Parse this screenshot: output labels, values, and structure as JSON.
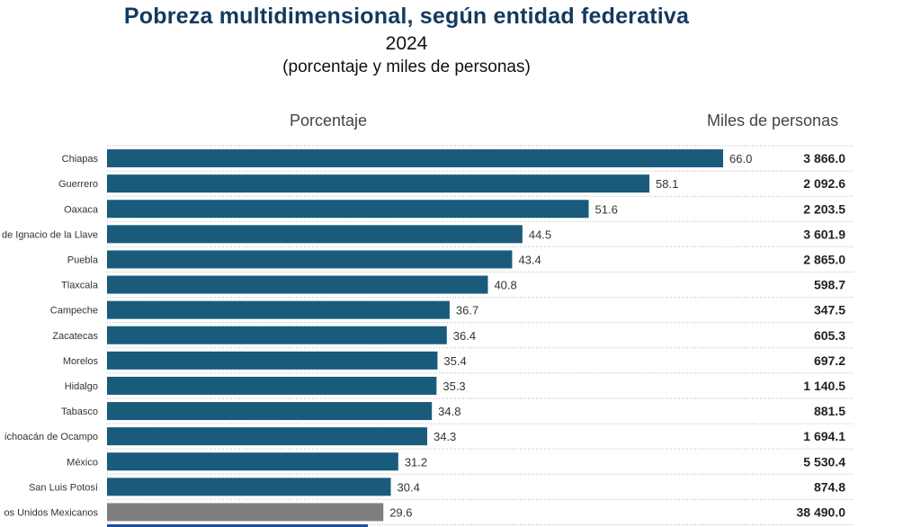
{
  "header": {
    "title": "Pobreza multidimensional, según entidad federativa",
    "year": "2024",
    "subtitle": "(porcentaje y miles de personas)",
    "col_pct": "Porcentaje",
    "col_miles": "Miles de personas"
  },
  "colors": {
    "bar": "#1a5b7c",
    "bar_total": "#7f7f7f",
    "title": "#13395e"
  },
  "chart_data": {
    "type": "bar",
    "orientation": "horizontal",
    "categories": [
      "Chiapas",
      "Guerrero",
      "Oaxaca",
      "de Ignacio de la Llave",
      "Puebla",
      "Tlaxcala",
      "Campeche",
      "Zacatecas",
      "Morelos",
      "Hidalgo",
      "Tabasco",
      "ichoacán de Ocampo",
      "México",
      "San Luis Potosí",
      "os Unidos Mexicanos"
    ],
    "series": [
      {
        "name": "Porcentaje",
        "values": [
          66.0,
          58.1,
          51.6,
          44.5,
          43.4,
          40.8,
          36.7,
          36.4,
          35.4,
          35.3,
          34.8,
          34.3,
          31.2,
          30.4,
          29.6
        ]
      },
      {
        "name": "Miles de personas",
        "values": [
          "3 866.0",
          "2 092.6",
          "2 203.5",
          "3 601.9",
          "2 865.0",
          "598.7",
          "347.5",
          "605.3",
          "697.2",
          "1 140.5",
          "881.5",
          "1 694.1",
          "5 530.4",
          "874.8",
          "38 490.0"
        ]
      }
    ],
    "highlighted_category": "os Unidos Mexicanos",
    "grid": "dotted row separators",
    "legend": "none"
  }
}
